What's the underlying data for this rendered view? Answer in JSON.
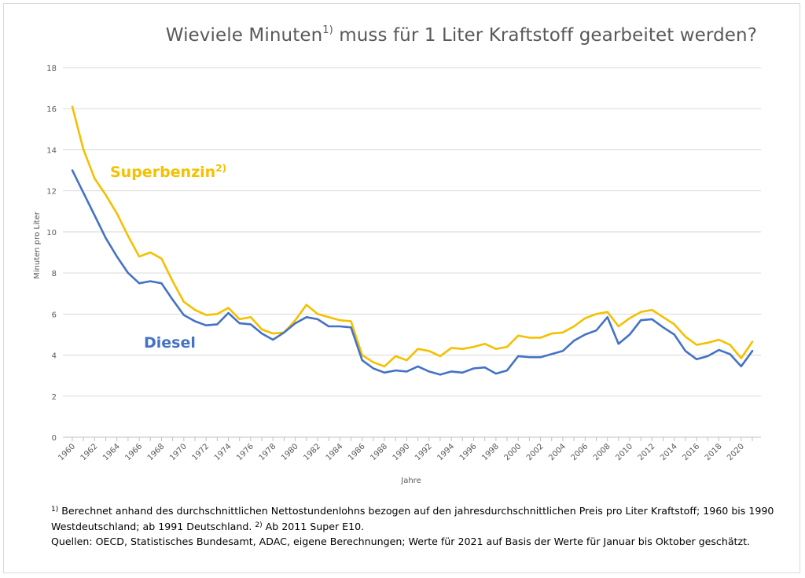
{
  "chart_data": {
    "type": "line",
    "title": "Wieviele Minuten",
    "title_sup": "1)",
    "title_rest": " muss für 1 Liter Kraftstoff gearbeitet werden?",
    "ylabel": "Minuten pro Liter",
    "xlabel": "Jahre",
    "ylim": [
      0,
      18
    ],
    "yticks": [
      0,
      2,
      4,
      6,
      8,
      10,
      12,
      14,
      16,
      18
    ],
    "x": [
      1960,
      1961,
      1962,
      1963,
      1964,
      1965,
      1966,
      1967,
      1968,
      1969,
      1970,
      1971,
      1972,
      1973,
      1974,
      1975,
      1976,
      1977,
      1978,
      1979,
      1980,
      1981,
      1982,
      1983,
      1984,
      1985,
      1986,
      1987,
      1988,
      1989,
      1990,
      1991,
      1992,
      1993,
      1994,
      1995,
      1996,
      1997,
      1998,
      1999,
      2000,
      2001,
      2002,
      2003,
      2004,
      2005,
      2006,
      2007,
      2008,
      2009,
      2010,
      2011,
      2012,
      2013,
      2014,
      2015,
      2016,
      2017,
      2018,
      2019,
      2020,
      2021
    ],
    "xticks": [
      "1960",
      "1962",
      "1964",
      "1966",
      "1968",
      "1970",
      "1972",
      "1974",
      "1976",
      "1978",
      "1980",
      "1982",
      "1984",
      "1986",
      "1988",
      "1990",
      "1992",
      "1994",
      "1996",
      "1998",
      "2000",
      "2002",
      "2004",
      "2006",
      "2008",
      "2010",
      "2012",
      "2014",
      "2016",
      "2018",
      "2020"
    ],
    "grid": true,
    "series": [
      {
        "name": "Superbenzin",
        "name_sup": "2)",
        "color": "#f5c000",
        "values": [
          16.1,
          14.0,
          12.6,
          11.8,
          10.9,
          9.8,
          8.8,
          9.0,
          8.7,
          7.6,
          6.6,
          6.2,
          5.95,
          6.0,
          6.3,
          5.75,
          5.85,
          5.25,
          5.05,
          5.1,
          5.7,
          6.45,
          6.0,
          5.85,
          5.7,
          5.65,
          4.0,
          3.65,
          3.45,
          3.95,
          3.75,
          4.3,
          4.2,
          3.95,
          4.35,
          4.3,
          4.4,
          4.55,
          4.3,
          4.4,
          4.95,
          4.85,
          4.85,
          5.05,
          5.1,
          5.4,
          5.8,
          6.0,
          6.1,
          5.4,
          5.8,
          6.1,
          6.2,
          5.85,
          5.5,
          4.9,
          4.5,
          4.6,
          4.75,
          4.5,
          3.85,
          4.65
        ]
      },
      {
        "name": "Diesel",
        "color": "#4472c4",
        "values": [
          13.0,
          11.9,
          10.8,
          9.7,
          8.8,
          8.0,
          7.5,
          7.6,
          7.5,
          6.7,
          5.95,
          5.65,
          5.45,
          5.5,
          6.05,
          5.55,
          5.5,
          5.05,
          4.75,
          5.1,
          5.55,
          5.85,
          5.75,
          5.4,
          5.4,
          5.35,
          3.75,
          3.35,
          3.15,
          3.25,
          3.2,
          3.45,
          3.2,
          3.05,
          3.2,
          3.15,
          3.35,
          3.4,
          3.1,
          3.25,
          3.95,
          3.9,
          3.9,
          4.05,
          4.2,
          4.7,
          5.0,
          5.2,
          5.85,
          4.55,
          5.0,
          5.7,
          5.75,
          5.35,
          5.0,
          4.2,
          3.8,
          3.95,
          4.25,
          4.05,
          3.45,
          4.2
        ]
      }
    ]
  },
  "colors": {
    "grid": "#d9d9d9",
    "axis": "#bfbfbf",
    "text": "#595959"
  },
  "footnote": {
    "sup1": "1)",
    "line1": " Berechnet anhand des durchschnittlichen Nettostundenlohns bezogen auf den jahresdurchschnittlichen Preis pro Liter Kraftstoff; 1960 bis 1990 Westdeutschland; ab 1991 Deutschland.",
    "sup2": "2)",
    "line1b": " Ab 2011 Super E10.",
    "line2": "Quellen: OECD, Statistisches Bundesamt, ADAC, eigene Berechnungen; Werte für 2021 auf Basis der Werte für Januar bis Oktober geschätzt."
  }
}
